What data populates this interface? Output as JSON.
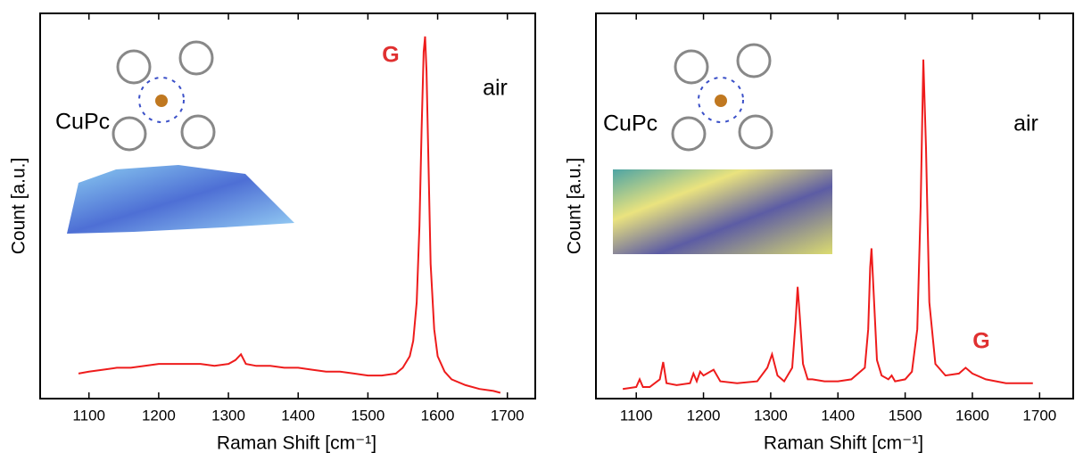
{
  "chart_data": [
    {
      "type": "line",
      "xlabel": "Raman Shift [cm⁻¹]",
      "ylabel": "Count [a.u.]",
      "xlim": [
        1030,
        1740
      ],
      "ylim": [
        0,
        100
      ],
      "xticks": [
        1100,
        1200,
        1300,
        1400,
        1500,
        1600,
        1700
      ],
      "color": "#ee1c1c",
      "annotations": [
        {
          "text": "CuPc",
          "color": "#000000"
        },
        {
          "text": "air",
          "color": "#000000"
        },
        {
          "text": "G",
          "color": "#e03030"
        }
      ],
      "x": [
        1085,
        1100,
        1120,
        1140,
        1160,
        1180,
        1200,
        1220,
        1240,
        1260,
        1280,
        1300,
        1310,
        1318,
        1325,
        1340,
        1360,
        1380,
        1400,
        1420,
        1440,
        1460,
        1480,
        1500,
        1520,
        1540,
        1550,
        1560,
        1565,
        1570,
        1574,
        1577,
        1580,
        1582,
        1584,
        1587,
        1590,
        1595,
        1600,
        1610,
        1620,
        1640,
        1660,
        1680,
        1690
      ],
      "values": [
        6.5,
        7,
        7.5,
        8,
        8,
        8.5,
        9,
        9,
        9,
        9,
        8.5,
        9,
        10,
        11.5,
        9,
        8.5,
        8.5,
        8,
        8,
        7.5,
        7,
        7,
        6.5,
        6,
        6,
        6.5,
        8,
        11,
        15,
        25,
        45,
        70,
        90,
        94,
        85,
        60,
        35,
        18,
        11,
        7,
        5,
        3.5,
        2.5,
        2,
        1.5
      ]
    },
    {
      "type": "line",
      "xlabel": "Raman Shift [cm⁻¹]",
      "ylabel": "Count [a.u.]",
      "xlim": [
        1040,
        1750
      ],
      "ylim": [
        0,
        100
      ],
      "xticks": [
        1100,
        1200,
        1300,
        1400,
        1500,
        1600,
        1700
      ],
      "color": "#ee1c1c",
      "annotations": [
        {
          "text": "CuPc",
          "color": "#000000"
        },
        {
          "text": "air",
          "color": "#000000"
        },
        {
          "text": "G",
          "color": "#e03030"
        }
      ],
      "x": [
        1080,
        1100,
        1105,
        1110,
        1120,
        1135,
        1140,
        1145,
        1160,
        1180,
        1185,
        1190,
        1195,
        1200,
        1210,
        1215,
        1225,
        1250,
        1280,
        1295,
        1302,
        1310,
        1320,
        1332,
        1337,
        1340,
        1343,
        1348,
        1355,
        1362,
        1380,
        1400,
        1420,
        1430,
        1440,
        1445,
        1448,
        1450,
        1453,
        1458,
        1465,
        1475,
        1480,
        1485,
        1500,
        1510,
        1518,
        1523,
        1527,
        1531,
        1536,
        1545,
        1560,
        1580,
        1590,
        1600,
        1620,
        1650,
        1690
      ],
      "values": [
        2.5,
        3,
        5,
        3,
        3,
        5,
        9.5,
        4,
        3.5,
        4,
        6.5,
        4.5,
        7,
        6,
        7,
        7.5,
        4.5,
        4,
        4.5,
        8,
        11.5,
        6,
        4.5,
        8,
        20,
        29,
        22,
        9,
        5,
        5,
        4.5,
        4.5,
        5,
        6.5,
        8,
        18,
        34,
        39,
        28,
        10,
        6,
        5,
        6,
        4.5,
        5,
        7,
        18,
        50,
        88,
        65,
        25,
        9,
        6,
        6.5,
        8,
        6.5,
        5,
        4,
        4
      ]
    }
  ]
}
